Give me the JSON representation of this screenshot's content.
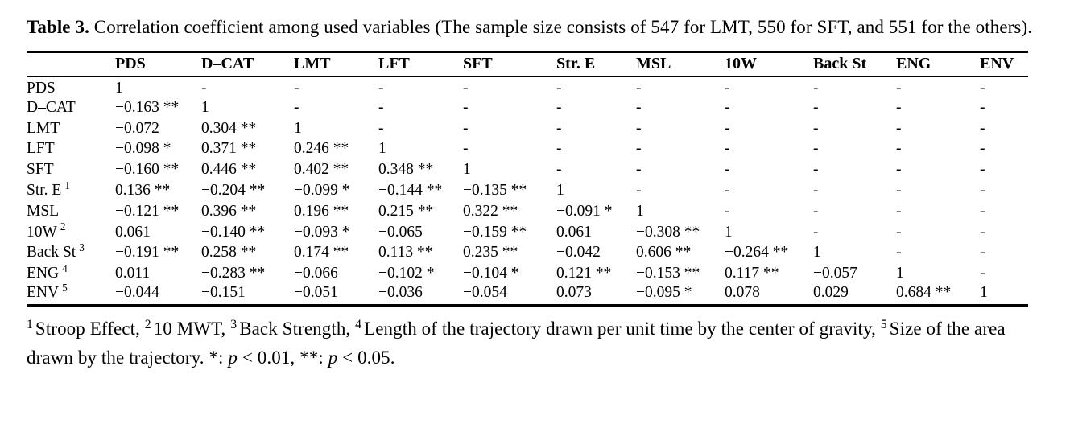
{
  "title": {
    "label": "Table 3.",
    "text": " Correlation coefficient among used variables (The sample size consists of 547 for LMT, 550 for SFT, and 551 for the others)."
  },
  "table": {
    "columns": [
      "",
      "PDS",
      "D–CAT",
      "LMT",
      "LFT",
      "SFT",
      "Str. E",
      "MSL",
      "10W",
      "Back St",
      "ENG",
      "ENV"
    ],
    "rows": [
      {
        "label": "PDS",
        "sup": "",
        "cells": [
          "1",
          "-",
          "-",
          "-",
          "-",
          "-",
          "-",
          "-",
          "-",
          "-",
          "-"
        ]
      },
      {
        "label": "D–CAT",
        "sup": "",
        "cells": [
          "−0.163 **",
          "1",
          "-",
          "-",
          "-",
          "-",
          "-",
          "-",
          "-",
          "-",
          "-"
        ]
      },
      {
        "label": "LMT",
        "sup": "",
        "cells": [
          "−0.072",
          "0.304 **",
          "1",
          "-",
          "-",
          "-",
          "-",
          "-",
          "-",
          "-",
          "-"
        ]
      },
      {
        "label": "LFT",
        "sup": "",
        "cells": [
          "−0.098 *",
          "0.371 **",
          "0.246 **",
          "1",
          "-",
          "-",
          "-",
          "-",
          "-",
          "-",
          "-"
        ]
      },
      {
        "label": "SFT",
        "sup": "",
        "cells": [
          "−0.160 **",
          "0.446 **",
          "0.402 **",
          "0.348 **",
          "1",
          "-",
          "-",
          "-",
          "-",
          "-",
          "-"
        ]
      },
      {
        "label": "Str. E",
        "sup": "1",
        "cells": [
          "0.136 **",
          "−0.204 **",
          "−0.099 *",
          "−0.144 **",
          "−0.135 **",
          "1",
          "-",
          "-",
          "-",
          "-",
          "-"
        ]
      },
      {
        "label": "MSL",
        "sup": "",
        "cells": [
          "−0.121 **",
          "0.396 **",
          "0.196 **",
          "0.215 **",
          "0.322 **",
          "−0.091 *",
          "1",
          "-",
          "-",
          "-",
          "-"
        ]
      },
      {
        "label": "10W",
        "sup": "2",
        "cells": [
          "0.061",
          "−0.140 **",
          "−0.093 *",
          "−0.065",
          "−0.159 **",
          "0.061",
          "−0.308 **",
          "1",
          "-",
          "-",
          "-"
        ]
      },
      {
        "label": "Back St",
        "sup": "3",
        "cells": [
          "−0.191 **",
          "0.258 **",
          "0.174 **",
          "0.113 **",
          "0.235 **",
          "−0.042",
          "0.606 **",
          "−0.264 **",
          "1",
          "-",
          "-"
        ]
      },
      {
        "label": "ENG",
        "sup": "4",
        "cells": [
          "0.011",
          "−0.283 **",
          "−0.066",
          "−0.102 *",
          "−0.104 *",
          "0.121 **",
          "−0.153 **",
          "0.117 **",
          "−0.057",
          "1",
          "-"
        ]
      },
      {
        "label": "ENV",
        "sup": "5",
        "cells": [
          "−0.044",
          "−0.151",
          "−0.051",
          "−0.036",
          "−0.054",
          "0.073",
          "−0.095 *",
          "0.078",
          "0.029",
          "0.684 **",
          "1"
        ]
      }
    ]
  },
  "footnote": {
    "definitions": [
      {
        "sup": "1",
        "text": "Stroop Effect, "
      },
      {
        "sup": "2",
        "text": "10 MWT, "
      },
      {
        "sup": "3",
        "text": "Back Strength, "
      },
      {
        "sup": "4",
        "text": "Length of the trajectory drawn per unit time by the center of gravity, "
      },
      {
        "sup": "5",
        "text": "Size of the area drawn by the trajectory. "
      }
    ],
    "significance": [
      {
        "marker": "*: ",
        "p": "p",
        "rest": " < 0.01, "
      },
      {
        "marker": "**: ",
        "p": "p",
        "rest": " < 0.05."
      }
    ]
  }
}
